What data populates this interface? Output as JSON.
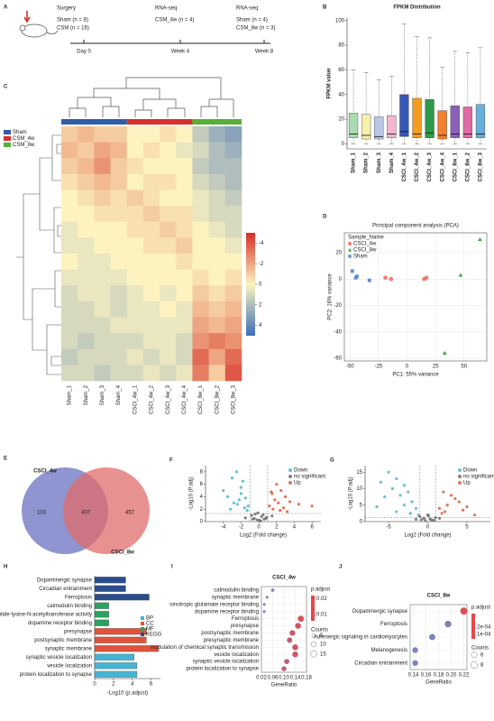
{
  "panel_labels": [
    "A",
    "B",
    "C",
    "D",
    "E",
    "F",
    "G",
    "H",
    "I",
    "J"
  ],
  "timeline": {
    "steps": [
      {
        "title": "Surgery",
        "lines": [
          "Sham (n = 8)",
          "CSM (n = 16)"
        ],
        "time": "Day 0"
      },
      {
        "title": "RNA-seq",
        "lines": [
          "CSM_4w (n = 4)"
        ],
        "time": "Week 4"
      },
      {
        "title": "RNA-seq",
        "lines": [
          "Sham (n = 4)",
          "CSM_8w (n = 3)"
        ],
        "time": "Week 8"
      }
    ]
  },
  "venn": {
    "left_name": "CSCI_4w",
    "left_only": "103",
    "shared": "407",
    "right_only": "457",
    "right_name": "CSCI_8w"
  },
  "chart_data": [
    {
      "type": "box",
      "title": "FPKM Distribution",
      "y_label": "FPKM value",
      "categories": [
        "Sham_1",
        "Sham_2",
        "Sham_3",
        "Sham_4",
        "CSCI_4w_1",
        "CSCI_4w_2",
        "CSCI_4w_3",
        "CSCI_4w_4",
        "CSCI_8w_1",
        "CSCI_8w_2",
        "CSCI_8w_3"
      ],
      "colors": [
        "#a8dcb0",
        "#f6f0a8",
        "#b9c6e6",
        "#f2b6d0",
        "#3557b7",
        "#f39c1f",
        "#2e9b4a",
        "#f07f2e",
        "#8b5fb8",
        "#e06aa4",
        "#6aaedb"
      ],
      "whisker_low": [
        0,
        0,
        0,
        0,
        0,
        0,
        0,
        0,
        0,
        0,
        0
      ],
      "q1": [
        5,
        4,
        4,
        5,
        6,
        5,
        5,
        4,
        5,
        5,
        5
      ],
      "median": [
        8,
        7,
        6,
        8,
        10,
        8,
        9,
        7,
        8,
        8,
        8
      ],
      "q3": [
        25,
        24,
        22,
        23,
        40,
        37,
        36,
        27,
        31,
        30,
        32
      ],
      "whisker_high": [
        60,
        58,
        52,
        55,
        97,
        87,
        86,
        62,
        75,
        74,
        78
      ],
      "ylim": [
        -4,
        102
      ],
      "yticks": [
        0,
        20,
        40,
        60,
        80,
        100
      ]
    },
    {
      "type": "heatmap",
      "categories": [
        "Sham_1",
        "Sham_2",
        "Sham_3",
        "Sham_4",
        "CSCI_4w_1",
        "CSCI_4w_2",
        "CSCI_4w_3",
        "CSCI_4w_4",
        "CSCI_8w_1",
        "CSCI_8w_2",
        "CSCI_8w_3"
      ],
      "groups": [
        {
          "name": "Sham",
          "color": "#2f5ea8",
          "columns": 4
        },
        {
          "name": "CSM_4w",
          "color": "#d6312b",
          "columns": 4
        },
        {
          "name": "CSM_8w",
          "color": "#5aae3a",
          "columns": 3
        }
      ],
      "colors": [
        "#d73027",
        "#fdf3c0",
        "#3b6fb6"
      ],
      "zlim": [
        -5,
        5
      ],
      "zticks": [
        -4,
        -2,
        0,
        2,
        4
      ],
      "values": [
        [
          -1,
          -1.5,
          -1,
          -1,
          0,
          0,
          -0.5,
          0,
          1.5,
          2.5,
          3
        ],
        [
          -1.5,
          -1,
          -2,
          -1.5,
          0,
          -0.5,
          0,
          0.5,
          1,
          2,
          2.5
        ],
        [
          -1,
          -1.5,
          -2.5,
          -1,
          -0.5,
          0,
          0,
          0,
          1.5,
          2,
          2
        ],
        [
          -0.5,
          -1,
          -1.5,
          -1,
          0,
          -0.5,
          -0.5,
          0,
          1,
          1.5,
          2
        ],
        [
          0,
          -0.5,
          -1,
          -0.5,
          -1,
          -0.5,
          0,
          0,
          0.5,
          1,
          1.5
        ],
        [
          0,
          0,
          -0.5,
          -0.5,
          -0.5,
          -1,
          -0.5,
          -0.5,
          0.5,
          1,
          1
        ],
        [
          0.5,
          0,
          0,
          0,
          -0.5,
          -0.5,
          -1,
          -0.5,
          0,
          0.5,
          1
        ],
        [
          0.5,
          0.5,
          0,
          0,
          0,
          -0.5,
          -0.5,
          -1,
          0,
          0,
          0.5
        ],
        [
          0,
          0.5,
          0.5,
          0,
          0,
          0,
          0,
          -0.5,
          0,
          0,
          0
        ],
        [
          0.5,
          0.5,
          0.5,
          0.5,
          0,
          0,
          0,
          0,
          -0.5,
          0,
          -0.5
        ],
        [
          1,
          0.5,
          0.5,
          1,
          0.5,
          0,
          0.5,
          0,
          -1,
          -0.5,
          -1
        ],
        [
          1,
          1,
          0.5,
          1,
          0.5,
          0.5,
          0,
          0.5,
          -1.5,
          -1,
          -1.5
        ],
        [
          1,
          1,
          1,
          0.5,
          0.5,
          0.5,
          0.5,
          0.5,
          -2,
          -1.5,
          -2
        ],
        [
          1,
          1.5,
          1,
          1,
          1,
          0.5,
          0.5,
          1,
          -2.5,
          -3,
          -2.5
        ],
        [
          1.5,
          1,
          1,
          1,
          0.5,
          1,
          0.5,
          1,
          -3.5,
          -2,
          -3.5
        ],
        [
          1,
          1,
          1.5,
          1,
          1,
          0.5,
          1,
          0.5,
          -3,
          -1,
          -4
        ]
      ]
    },
    {
      "type": "scatter",
      "title": "Principal component analysis (PCA)",
      "x_label": "PC1: 55% variance",
      "y_label": "PC2: 16% variance",
      "legend_title": "Sample_Name",
      "legend": "upper left",
      "grid": true,
      "xlim": [
        -55,
        70
      ],
      "ylim": [
        -62,
        35
      ],
      "xticks": [
        -50,
        -25,
        0,
        25,
        50
      ],
      "yticks": [
        -60,
        -40,
        -20,
        0,
        20
      ],
      "series": [
        {
          "name": "CSCI_4w",
          "color": "#f0645a",
          "marker": "circle",
          "x": [
            -19,
            -14,
            15,
            17
          ],
          "values": [
            1,
            0,
            0,
            1
          ]
        },
        {
          "name": "CSCI_8w",
          "color": "#3aa33a",
          "marker": "triangle",
          "x": [
            64,
            47,
            33
          ],
          "values": [
            30,
            3,
            -56
          ]
        },
        {
          "name": "Sham",
          "color": "#5b8fd4",
          "marker": "square",
          "x": [
            -48,
            -45,
            -44,
            -33
          ],
          "values": [
            6,
            1,
            2,
            -1
          ]
        }
      ]
    },
    {
      "type": "scatter",
      "x_label": "Log2 (Fold change)",
      "y_label": "-Log10 (P.adj)",
      "legend": "upper right",
      "grid": false,
      "xlim": [
        -6,
        7
      ],
      "ylim": [
        0,
        9
      ],
      "xticks": [
        -4,
        -2,
        0,
        2,
        4,
        6
      ],
      "yticks": [
        0,
        2,
        4,
        6,
        8
      ],
      "vlines": [
        -1,
        1
      ],
      "hline": 1.3,
      "series": [
        {
          "name": "Down",
          "color": "#4fb3d0",
          "marker": "circle",
          "x": [
            -2.5,
            -3,
            -1.8,
            -4,
            -2,
            -1.5,
            -3.5,
            -2.2,
            -1.2,
            -2.8,
            -1.6,
            -3.2,
            -2.4,
            -1.3,
            -2
          ],
          "values": [
            8,
            7,
            6.5,
            5,
            4.5,
            3.8,
            4,
            3.5,
            2.5,
            3,
            2.2,
            2,
            2.8,
            1.8,
            5.5
          ]
        },
        {
          "name": "no significant",
          "color": "#6b6b6b",
          "marker": "circle",
          "x": [
            -0.5,
            0.3,
            -0.2,
            0.6,
            -0.8,
            0.1,
            0.9,
            -0.4,
            0.5,
            -1.5,
            1.5,
            -0.1,
            0.2,
            -0.7,
            0.8
          ],
          "values": [
            0.5,
            0.8,
            0.3,
            0.4,
            1,
            0.2,
            0.7,
            1.2,
            1.1,
            0.6,
            0.9,
            1.4,
            0.1,
            0.4,
            0.5
          ]
        },
        {
          "name": "Up",
          "color": "#e05a3a",
          "marker": "circle",
          "x": [
            2,
            2.5,
            1.5,
            3,
            1.8,
            2.2,
            3.5,
            1.2,
            2.8,
            1.6,
            4.5,
            2.4,
            1.4,
            3.2,
            6
          ],
          "values": [
            6,
            5,
            4.5,
            4,
            3.5,
            3,
            3.2,
            2.5,
            2.2,
            2,
            2.8,
            1.8,
            4.8,
            1.6,
            2.5
          ]
        }
      ]
    },
    {
      "type": "scatter",
      "x_label": "Log2 (Fold change)",
      "y_label": "-Log10 (P.adj)",
      "legend": "upper right",
      "grid": false,
      "xlim": [
        -8,
        8
      ],
      "ylim": [
        0,
        17
      ],
      "xticks": [
        -5,
        0,
        5
      ],
      "yticks": [
        0,
        5,
        10,
        15
      ],
      "vlines": [
        -1,
        1
      ],
      "hline": 1.3,
      "series": [
        {
          "name": "Down",
          "color": "#4fb3d0",
          "marker": "circle",
          "x": [
            -5,
            -4,
            -6,
            -3,
            -4.5,
            -2.5,
            -3.5,
            -5.5,
            -2,
            -1.5,
            -3,
            -4,
            -2.2,
            -6.5,
            -1.2
          ],
          "values": [
            15,
            13,
            12,
            11,
            10,
            9,
            8,
            7.5,
            6,
            4,
            5,
            3,
            2.5,
            4.5,
            2
          ]
        },
        {
          "name": "no significant",
          "color": "#6b6b6b",
          "marker": "circle",
          "x": [
            -0.5,
            0.5,
            0,
            -1,
            1,
            -0.3,
            0.3,
            0.8,
            -0.8,
            1.5,
            -1.5,
            0.1
          ],
          "values": [
            1,
            0.5,
            2,
            1.5,
            1.2,
            0.3,
            0.8,
            0.4,
            0.6,
            1,
            0.7,
            1.8
          ]
        },
        {
          "name": "Up",
          "color": "#e05a3a",
          "marker": "circle",
          "x": [
            2,
            3,
            4,
            2.5,
            1.5,
            3.5,
            5,
            2.2,
            4.5,
            1.8,
            6
          ],
          "values": [
            9,
            8,
            6,
            5,
            4,
            7,
            4.5,
            3,
            3.5,
            2.5,
            2
          ]
        }
      ]
    },
    {
      "type": "bar",
      "orientation": "horizontal",
      "x_label": "-Log10 (p.adjust)",
      "legend": "center right",
      "categories": [
        "Dopaminergic synapse",
        "Circadian entrainment",
        "Ferroptosis",
        "calmodulin binding",
        "peptide-lysine-N-acetyltransferase activity",
        "dopamine receptor binding",
        "presynapse",
        "postsynaptic membrane",
        "synaptic membrane",
        "synaptic vesicle localization",
        "vesicle localization",
        "protein localization to synapse"
      ],
      "xlim": [
        0,
        7
      ],
      "xticks": [
        0,
        2,
        4,
        6
      ],
      "series": [
        {
          "name": "BP",
          "color": "#46b4d3",
          "values": [
            null,
            null,
            null,
            null,
            null,
            null,
            null,
            null,
            null,
            4.2,
            4.5,
            4.5
          ]
        },
        {
          "name": "CC",
          "color": "#e0533a",
          "values": [
            null,
            null,
            null,
            null,
            null,
            null,
            5.5,
            5.5,
            6.8,
            null,
            null,
            null
          ]
        },
        {
          "name": "MF",
          "color": "#2ca25f",
          "values": [
            null,
            null,
            null,
            1.5,
            1.5,
            1.5,
            null,
            null,
            null,
            null,
            null,
            null
          ]
        },
        {
          "name": "KEGG",
          "color": "#2b4c8c",
          "values": [
            3.3,
            3.3,
            5.8,
            null,
            null,
            null,
            null,
            null,
            null,
            null,
            null,
            null
          ]
        }
      ]
    },
    {
      "type": "dot",
      "title": "CSCI_4w",
      "x_label": "GeneRatio",
      "color_title": "p.adjust",
      "size_title": "Counts",
      "categories": [
        "calmodulin binding",
        "synaptic membrane",
        "ionotropic glutamate receptor binding",
        "dopamine receptor binding",
        "Ferroptosis",
        "presynapse",
        "postsynaptic membrane",
        "presynaptic membrane",
        "modulation of chemical synaptic transmission",
        "vesicle localization",
        "synaptic vesicle localization",
        "protein localization to synapse"
      ],
      "values": [
        0.06,
        0.04,
        0.03,
        0.03,
        0.16,
        0.15,
        0.13,
        0.12,
        0.14,
        0.14,
        0.11,
        0.1
      ],
      "padj": [
        0.02,
        0.018,
        0.02,
        0.019,
        0.008,
        0.009,
        0.01,
        0.011,
        0.009,
        0.01,
        0.012,
        0.011
      ],
      "counts": [
        4,
        3,
        3,
        3,
        14,
        13,
        12,
        11,
        13,
        13,
        10,
        9
      ],
      "xlim": [
        0.02,
        0.18
      ],
      "xticks": [
        0.02,
        0.06,
        {
          "value": 0.1,
          "label": "0.10"
        },
        0.14,
        0.18
      ],
      "colors": [
        "#e8474a",
        "#6b8fd1"
      ],
      "padj_lim": [
        0.006,
        0.022
      ],
      "padj_ticks": [
        0.02,
        0.01
      ],
      "size_ticks": [
        5,
        10,
        15
      ]
    },
    {
      "type": "dot",
      "title": "CSCI_8w",
      "x_label": "GeneRatio",
      "color_title": "p.adjust",
      "size_title": "Counts",
      "categories": [
        "Dopaminergic synapse",
        "Ferroptosis",
        "Adrenergic signaling in cardiomyocytes",
        "Melanogenesis",
        "Circadian entrainment"
      ],
      "values": [
        0.22,
        0.195,
        0.17,
        0.143,
        0.143
      ],
      "padj": [
        5e-05,
        0.0003,
        0.00035,
        0.00035,
        0.00035
      ],
      "counts": [
        9,
        8,
        7,
        6,
        6
      ],
      "xlim": [
        0.135,
        0.225
      ],
      "xticks": [
        0.14,
        0.16,
        0.18,
        {
          "value": 0.2,
          "label": "0.20"
        },
        0.22
      ],
      "colors": [
        "#e8474a",
        "#6b8fd1"
      ],
      "padj_lim": [
        3e-05,
        0.0004
      ],
      "padj_ticks": [
        {
          "value": 0.0002,
          "label": "2e-04"
        },
        {
          "value": 0.0001,
          "label": "1e-04"
        }
      ],
      "size_ticks": [
        6,
        8
      ]
    }
  ]
}
